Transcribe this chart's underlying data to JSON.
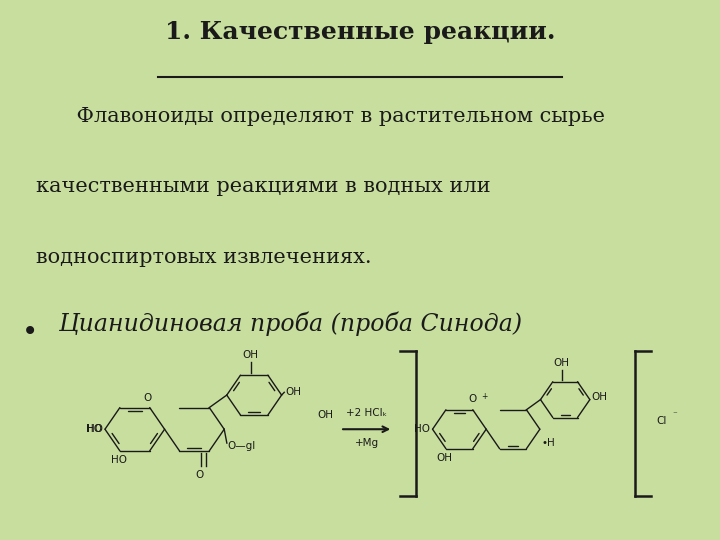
{
  "background_color": "#c8de9e",
  "title": "1. Качественные реакции.",
  "title_fontsize": 18,
  "title_color": "#1a1a1a",
  "body_line1": "    Флавоноиды определяют в растительном сырье",
  "body_line2": "качественными реакциями в водных или",
  "body_line3": "водноспиртовых извлечениях.",
  "body_fontsize": 15,
  "body_color": "#1a1a1a",
  "bullet_text": "Цианидиновая проба (проба Синода)",
  "bullet_fontsize": 17,
  "bullet_color": "#1a1a1a",
  "chem_box_color": "#f5f5ee",
  "tc": "#1a1a1a"
}
